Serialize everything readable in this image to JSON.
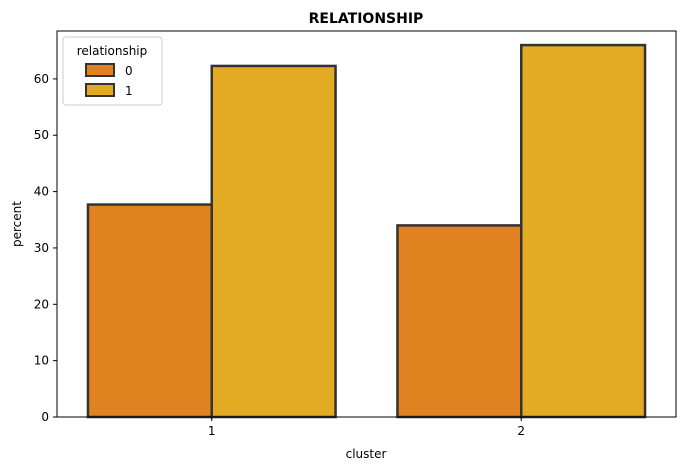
{
  "chart_data": {
    "type": "bar",
    "title": "RELATIONSHIP",
    "xlabel": "cluster",
    "ylabel": "percent",
    "categories": [
      "1",
      "2"
    ],
    "ylim": [
      0,
      68.5
    ],
    "yticks": [
      0,
      10,
      20,
      30,
      40,
      50,
      60
    ],
    "legend": {
      "title": "relationship",
      "placement": "top-left"
    },
    "grid": false,
    "series": [
      {
        "name": "0",
        "color": "#df821f",
        "values": [
          37.7,
          34.0
        ]
      },
      {
        "name": "1",
        "color": "#e3aa24",
        "values": [
          62.3,
          66.0
        ]
      }
    ],
    "bar_edge_color": "#333333"
  }
}
